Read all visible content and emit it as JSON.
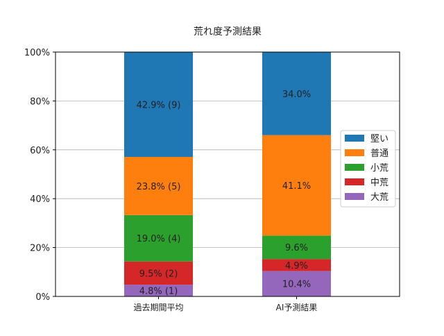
{
  "chart_data": {
    "type": "bar",
    "stacked": true,
    "title": "荒れ度予測結果",
    "xlabel": "",
    "ylabel": "",
    "ylim": [
      0,
      100
    ],
    "yticks": [
      "0%",
      "20%",
      "40%",
      "60%",
      "80%",
      "100%"
    ],
    "grid": "y",
    "legend_position": "right",
    "categories": [
      "過去期間平均",
      "AI予測結果"
    ],
    "series": [
      {
        "name": "大荒",
        "color": "#9467bd",
        "values": [
          4.8,
          10.4
        ],
        "labels": [
          "4.8% (1)",
          "10.4%"
        ]
      },
      {
        "name": "中荒",
        "color": "#d62728",
        "values": [
          9.5,
          4.9
        ],
        "labels": [
          "9.5% (2)",
          "4.9%"
        ]
      },
      {
        "name": "小荒",
        "color": "#2ca02c",
        "values": [
          19.0,
          9.6
        ],
        "labels": [
          "19.0% (4)",
          "9.6%"
        ]
      },
      {
        "name": "普通",
        "color": "#ff7f0e",
        "values": [
          23.8,
          41.1
        ],
        "labels": [
          "23.8% (5)",
          "41.1%"
        ]
      },
      {
        "name": "堅い",
        "color": "#1f77b4",
        "values": [
          42.9,
          34.0
        ],
        "labels": [
          "42.9% (9)",
          "34.0%"
        ]
      }
    ],
    "legend_order": [
      "堅い",
      "普通",
      "小荒",
      "中荒",
      "大荒"
    ]
  }
}
